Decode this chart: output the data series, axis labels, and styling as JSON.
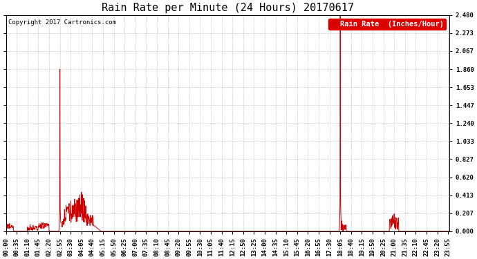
{
  "title": "Rain Rate per Minute (24 Hours) 20170617",
  "copyright_text": "Copyright 2017 Cartronics.com",
  "legend_label": "Rain Rate  (Inches/Hour)",
  "yticks": [
    0.0,
    0.207,
    0.413,
    0.62,
    0.827,
    1.033,
    1.24,
    1.447,
    1.653,
    1.86,
    2.067,
    2.273,
    2.48
  ],
  "ylim": [
    0.0,
    2.48
  ],
  "line_color": "#cc0000",
  "legend_bg": "#dd0000",
  "bg_color": "#ffffff",
  "grid_color": "#999999",
  "title_fontsize": 11,
  "tick_fontsize": 6.5,
  "copyright_fontsize": 6.5,
  "legend_fontsize": 7.5,
  "minutes_per_day": 1440,
  "tick_step": 35,
  "xlim_max": 1439
}
